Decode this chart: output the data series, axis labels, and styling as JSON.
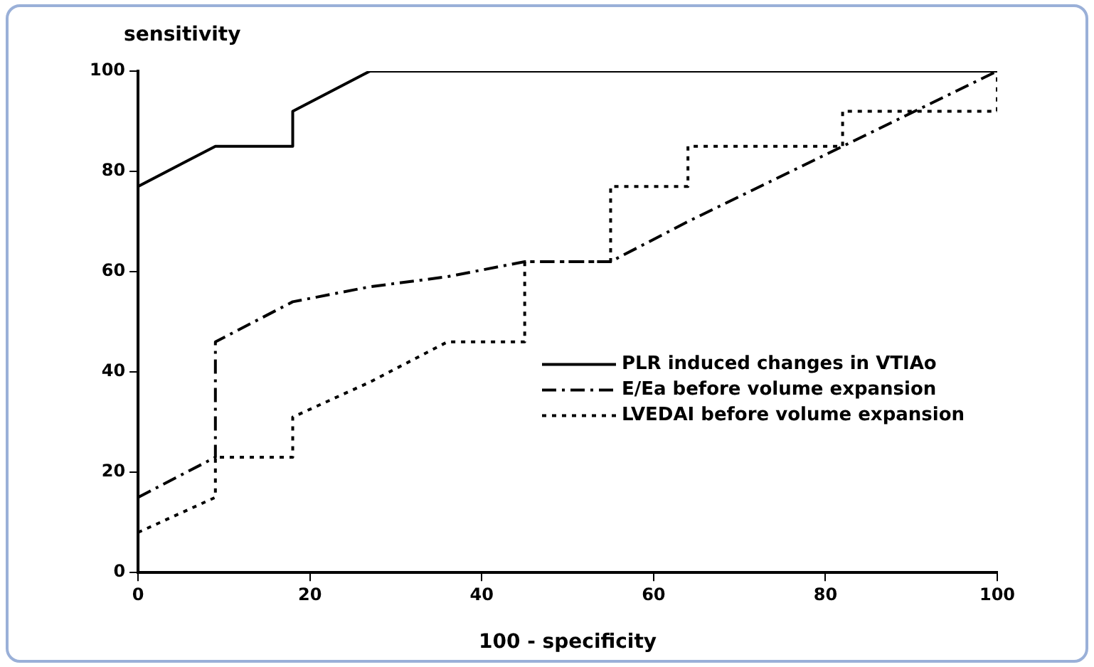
{
  "chart_data": {
    "type": "line",
    "xlabel": "100 - specificity",
    "ylabel": "sensitivity",
    "xlim": [
      0,
      100
    ],
    "ylim": [
      0,
      100
    ],
    "xticks": [
      0,
      20,
      40,
      60,
      80,
      100
    ],
    "yticks": [
      0,
      20,
      40,
      60,
      80,
      100
    ],
    "grid": false,
    "legend": "right",
    "marker": "none",
    "series": [
      {
        "name": "PLR induced changes in VTIAo",
        "color": "#000000",
        "line_style": "solid",
        "x": [
          0,
          0,
          9,
          18,
          18,
          27,
          100
        ],
        "values": [
          0,
          77,
          85,
          85,
          92,
          100,
          100
        ]
      },
      {
        "name": "E/Ea before volume expansion",
        "color": "#000000",
        "line_style": "dashed",
        "x": [
          0,
          9,
          9,
          18,
          27,
          36,
          45,
          55,
          64,
          82,
          100
        ],
        "values": [
          15,
          23,
          46,
          54,
          57,
          59,
          62,
          62,
          70,
          85,
          100
        ]
      },
      {
        "name": "LVEDAI before volume expansion",
        "color": "#000000",
        "line_style": "dotted",
        "x": [
          0,
          9,
          9,
          18,
          18,
          27,
          36,
          45,
          45,
          55,
          55,
          64,
          64,
          82,
          82,
          100,
          100
        ],
        "values": [
          8,
          15,
          23,
          23,
          31,
          38,
          46,
          46,
          62,
          62,
          77,
          77,
          85,
          85,
          92,
          92,
          100
        ]
      }
    ]
  }
}
